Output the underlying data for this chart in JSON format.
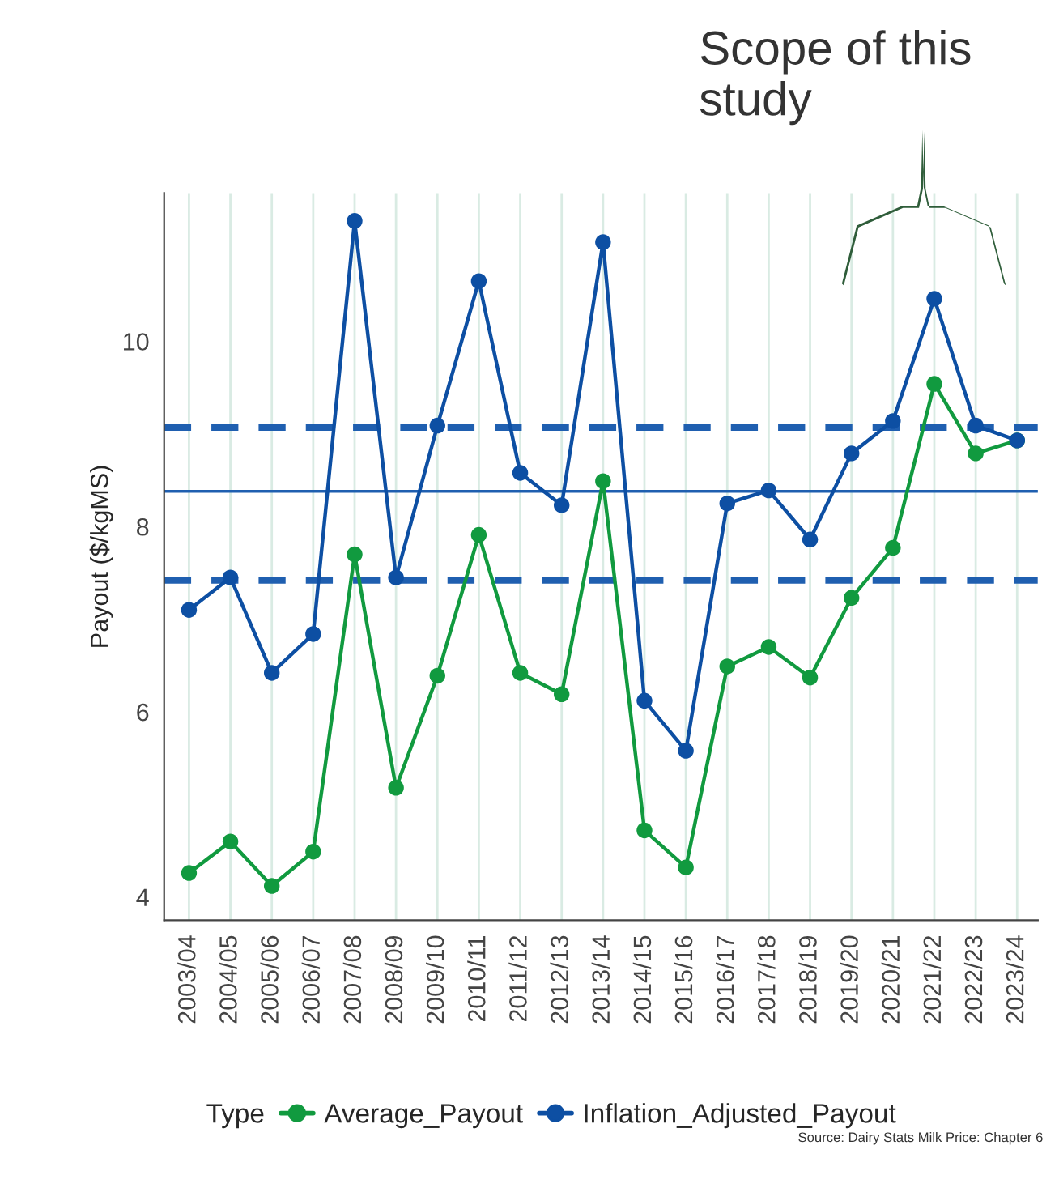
{
  "chart_data": {
    "type": "line",
    "categories": [
      "2003/04",
      "2004/05",
      "2005/06",
      "2006/07",
      "2007/08",
      "2008/09",
      "2009/10",
      "2010/11",
      "2011/12",
      "2012/13",
      "2013/14",
      "2014/15",
      "2015/16",
      "2016/17",
      "2017/18",
      "2018/19",
      "2019/20",
      "2020/21",
      "2021/22",
      "2022/23",
      "2023/24"
    ],
    "series": [
      {
        "name": "Average_Payout",
        "color": "#119a3f",
        "values": [
          4.26,
          4.6,
          4.12,
          4.49,
          7.7,
          5.18,
          6.39,
          7.91,
          6.42,
          6.19,
          8.49,
          4.72,
          4.32,
          6.49,
          6.7,
          6.37,
          7.23,
          7.77,
          9.54,
          8.79,
          8.93
        ]
      },
      {
        "name": "Inflation_Adjusted_Payout",
        "color": "#0d4fa3",
        "values": [
          7.1,
          7.45,
          6.42,
          6.84,
          11.3,
          7.45,
          9.09,
          10.65,
          8.58,
          8.23,
          11.07,
          6.12,
          5.58,
          8.25,
          8.39,
          7.86,
          8.79,
          9.14,
          10.46,
          9.09,
          8.93
        ]
      }
    ],
    "ylabel": "Payout ($/kgMS)",
    "legend_title": "Type",
    "ylim": [
      3.75,
      11.6
    ],
    "yticks": [
      4,
      6,
      8,
      10
    ],
    "ref_lines": [
      {
        "axis": "y",
        "value": 9.07,
        "color": "#1f5fb0",
        "line_style": "dashed"
      },
      {
        "axis": "y",
        "value": 8.38,
        "color": "#1f5fb0",
        "line_style": "solid"
      },
      {
        "axis": "y",
        "value": 7.42,
        "color": "#1f5fb0",
        "line_style": "dashed"
      }
    ],
    "annotations": [
      "Scope of this study",
      "Source: Dairy Stats Milk Price: Chapter 6"
    ],
    "grid": "x",
    "legend": "bottom",
    "marker": "circle",
    "line_style": "solid"
  }
}
